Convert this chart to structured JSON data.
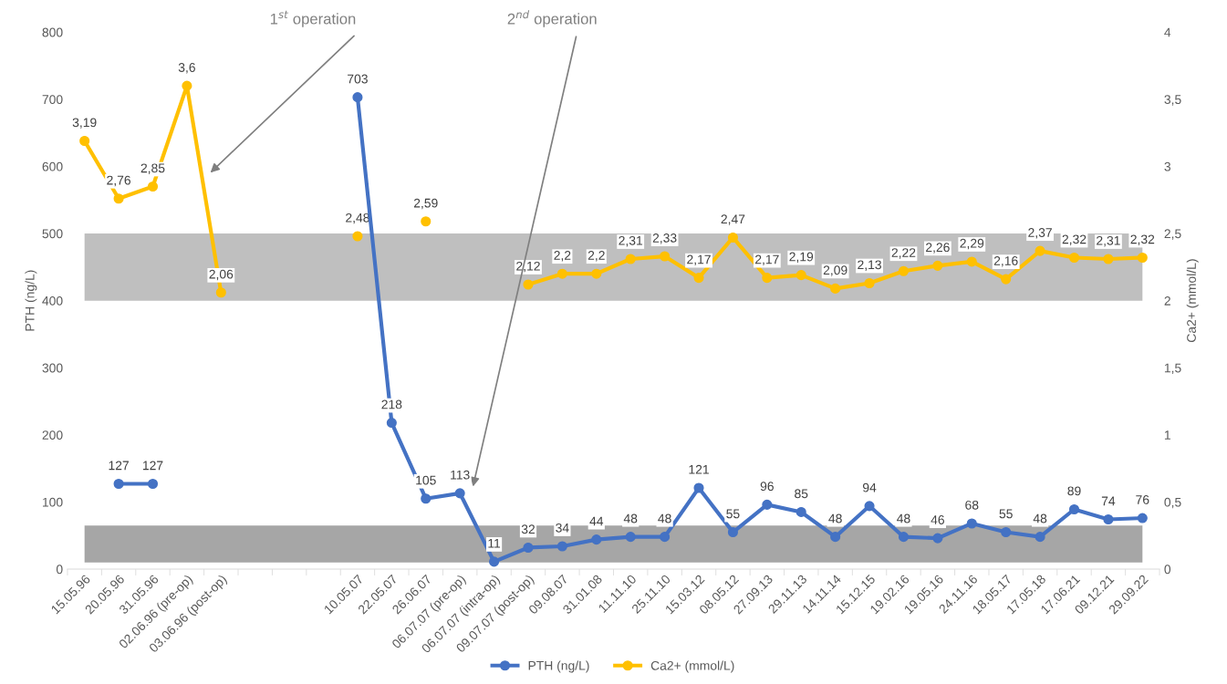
{
  "chart_data": {
    "type": "line",
    "xlabel": null,
    "ylabel": "PTH (ng/L)",
    "y2label": "Ca2+ (mmol/L)",
    "categories": [
      "15.05.96",
      "20.05.96",
      "31.05.96",
      "02.06.96 (pre-op)",
      "03.06.96 (post-op)",
      null,
      null,
      null,
      "10.05.07",
      "22.05.07",
      "26.06.07",
      "06.07.07 (pre-op)",
      "06.07.07 (intra-op)",
      "09.07.07 (post-op)",
      "09.08.07",
      "31.01.08",
      "11.11.10",
      "25.11.10",
      "15.03.12",
      "08.05.12",
      "27.09.13",
      "29.11.13",
      "14.11.14",
      "15.12.15",
      "19.02.16",
      "19.05.16",
      "24.11.16",
      "18.05.17",
      "17.05.18",
      "17.06.21",
      "09.12.21",
      "29.09.22"
    ],
    "series": [
      {
        "name": "PTH (ng/L)",
        "color": "#4472c4",
        "values": [
          null,
          127,
          127,
          null,
          null,
          null,
          null,
          null,
          703,
          218,
          105,
          113,
          11,
          32,
          34,
          44,
          48,
          48,
          121,
          55,
          96,
          85,
          48,
          94,
          48,
          46,
          68,
          55,
          48,
          89,
          74,
          76
        ],
        "value_labels": [
          null,
          "127",
          "127",
          null,
          null,
          null,
          null,
          null,
          "703",
          "218",
          "105",
          "113",
          "11",
          "32",
          "34",
          "44",
          "48",
          "48",
          "121",
          "55",
          "96",
          "85",
          "48",
          "94",
          "48",
          "46",
          "68",
          "55",
          "48",
          "89",
          "74",
          "76"
        ]
      },
      {
        "name": "Ca2+ (mmol/L)",
        "color": "#ffc000",
        "axis": "y2",
        "values": [
          3.19,
          2.76,
          2.85,
          3.6,
          2.06,
          null,
          null,
          null,
          2.48,
          null,
          2.59,
          null,
          null,
          2.12,
          2.2,
          2.2,
          2.31,
          2.33,
          2.17,
          2.47,
          2.17,
          2.19,
          2.09,
          2.13,
          2.22,
          2.26,
          2.29,
          2.16,
          2.37,
          2.32,
          2.31,
          2.32
        ],
        "value_labels": [
          "3,19",
          "2,76",
          "2,85",
          "3,6",
          "2,06",
          null,
          null,
          null,
          "2,48",
          null,
          "2,59",
          null,
          null,
          "2,12",
          "2,2",
          "2,2",
          "2,31",
          "2,33",
          "2,17",
          "2,47",
          "2,17",
          "2,19",
          "2,09",
          "2,13",
          "2,22",
          "2,26",
          "2,29",
          "2,16",
          "2,37",
          "2,32",
          "2,31",
          "2,32"
        ]
      }
    ],
    "ylim": [
      0,
      800
    ],
    "yticks": [
      0,
      100,
      200,
      300,
      400,
      500,
      600,
      700,
      800
    ],
    "y2lim": [
      0,
      4
    ],
    "y2ticks": [
      0,
      {
        "value": 0.5,
        "label": "0,5"
      },
      1,
      {
        "value": 1.5,
        "label": "1,5"
      },
      2,
      {
        "value": 2.5,
        "label": "2,5"
      },
      3,
      {
        "value": 3.5,
        "label": "3,5"
      },
      4
    ],
    "bands": [
      {
        "axis": "y2",
        "from": 2,
        "to": 2.5,
        "color": "#bfbfbf"
      },
      {
        "axis": "y",
        "from": 10,
        "to": 65,
        "color": "#a6a6a6"
      }
    ],
    "annotations": [
      "1$^{st}$ operation",
      "2$^{nd}$ operation"
    ],
    "grid": false,
    "legend": "bottom",
    "marker": "circle",
    "line_style": "solid"
  }
}
